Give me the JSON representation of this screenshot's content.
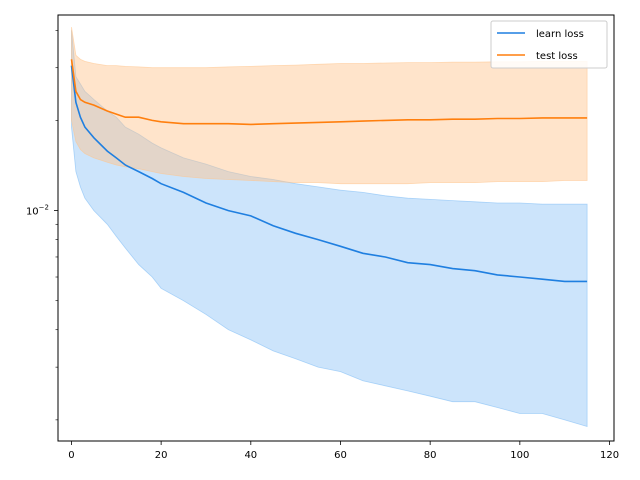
{
  "chart_data": {
    "type": "line",
    "title": "",
    "xlabel": "",
    "ylabel": "",
    "xlim": [
      -3,
      121
    ],
    "ylim": [
      0.0017,
      0.045
    ],
    "yscale": "log",
    "grid": false,
    "legend_position": "top-right",
    "x_ticks": [
      0,
      20,
      40,
      60,
      80,
      100,
      120
    ],
    "x_tick_labels": [
      "0",
      "20",
      "40",
      "60",
      "80",
      "100",
      "120"
    ],
    "y_major_ticks": [
      0.01
    ],
    "y_major_tick_labels": [
      "10",
      "−2"
    ],
    "y_minor_ticks": [
      0.002,
      0.003,
      0.004,
      0.005,
      0.006,
      0.007,
      0.008,
      0.009,
      0.02,
      0.03,
      0.04
    ],
    "series": [
      {
        "name": "learn loss",
        "color": "#1f7fe0",
        "band_color": "#7fbcf5",
        "x": [
          0,
          1,
          2,
          3,
          5,
          8,
          10,
          12,
          15,
          18,
          20,
          25,
          30,
          35,
          40,
          45,
          50,
          55,
          60,
          65,
          70,
          75,
          80,
          85,
          90,
          95,
          100,
          105,
          110,
          115
        ],
        "y": [
          0.0305,
          0.023,
          0.0205,
          0.019,
          0.0175,
          0.0158,
          0.015,
          0.0142,
          0.0135,
          0.0128,
          0.0123,
          0.0115,
          0.0106,
          0.01,
          0.0096,
          0.0089,
          0.0084,
          0.008,
          0.0076,
          0.0072,
          0.007,
          0.0067,
          0.0066,
          0.0064,
          0.0063,
          0.0061,
          0.006,
          0.0059,
          0.0058,
          0.0058
        ],
        "lower": [
          0.019,
          0.0135,
          0.012,
          0.011,
          0.01,
          0.009,
          0.0082,
          0.0075,
          0.0066,
          0.006,
          0.0055,
          0.005,
          0.0045,
          0.004,
          0.0037,
          0.0034,
          0.0032,
          0.003,
          0.0029,
          0.0027,
          0.0026,
          0.0025,
          0.0024,
          0.0023,
          0.0023,
          0.0022,
          0.0021,
          0.0021,
          0.002,
          0.0019
        ],
        "upper": [
          0.04,
          0.028,
          0.0265,
          0.025,
          0.0235,
          0.0215,
          0.0205,
          0.019,
          0.018,
          0.0168,
          0.0162,
          0.015,
          0.0143,
          0.0135,
          0.013,
          0.0127,
          0.0123,
          0.012,
          0.0117,
          0.0115,
          0.0112,
          0.011,
          0.0109,
          0.0108,
          0.0107,
          0.0106,
          0.0106,
          0.0105,
          0.0105,
          0.0105
        ]
      },
      {
        "name": "test loss",
        "color": "#ff7f0e",
        "band_color": "#ffc48c",
        "x": [
          0,
          1,
          2,
          3,
          5,
          8,
          10,
          12,
          15,
          18,
          20,
          25,
          30,
          35,
          40,
          45,
          50,
          55,
          60,
          65,
          70,
          75,
          80,
          85,
          90,
          95,
          100,
          105,
          110,
          115
        ],
        "y": [
          0.032,
          0.025,
          0.0235,
          0.023,
          0.0225,
          0.0215,
          0.021,
          0.0205,
          0.0205,
          0.02,
          0.0198,
          0.0195,
          0.0195,
          0.0195,
          0.0194,
          0.0195,
          0.0196,
          0.0197,
          0.0198,
          0.0199,
          0.02,
          0.0201,
          0.0201,
          0.0202,
          0.0202,
          0.0203,
          0.0203,
          0.0204,
          0.0204,
          0.0204
        ],
        "lower": [
          0.02,
          0.017,
          0.016,
          0.0155,
          0.015,
          0.0145,
          0.0142,
          0.014,
          0.0138,
          0.0135,
          0.0133,
          0.013,
          0.0128,
          0.0127,
          0.0126,
          0.0125,
          0.0124,
          0.0124,
          0.0123,
          0.0123,
          0.0123,
          0.0123,
          0.0124,
          0.0124,
          0.0124,
          0.0125,
          0.0125,
          0.0125,
          0.0126,
          0.0126
        ],
        "upper": [
          0.041,
          0.033,
          0.032,
          0.0315,
          0.031,
          0.0305,
          0.0305,
          0.0303,
          0.0302,
          0.03,
          0.03,
          0.03,
          0.03,
          0.0302,
          0.0303,
          0.0305,
          0.0306,
          0.0308,
          0.031,
          0.031,
          0.0311,
          0.0312,
          0.0312,
          0.0313,
          0.0313,
          0.0314,
          0.0314,
          0.0315,
          0.0315,
          0.0315
        ]
      }
    ]
  }
}
